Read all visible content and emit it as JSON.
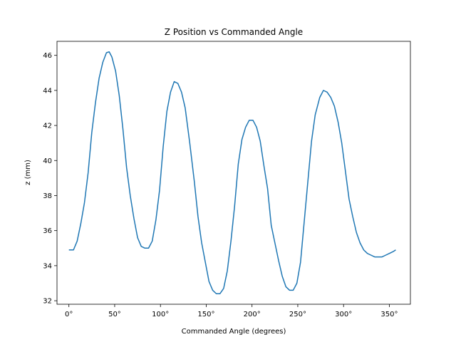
{
  "chart_data": {
    "type": "line",
    "title": "Z Position vs Commanded Angle",
    "xlabel": "Commanded Angle (degrees)",
    "ylabel": "z (mm)",
    "xlim": [
      -13,
      373
    ],
    "ylim": [
      31.8,
      46.8
    ],
    "x_ticks": [
      0,
      50,
      100,
      150,
      200,
      250,
      300,
      350
    ],
    "x_tick_labels": [
      "0°",
      "50°",
      "100°",
      "150°",
      "200°",
      "250°",
      "300°",
      "350°"
    ],
    "y_ticks": [
      32,
      34,
      36,
      38,
      40,
      42,
      44,
      46
    ],
    "y_tick_labels": [
      "32",
      "34",
      "36",
      "38",
      "40",
      "42",
      "44",
      "46"
    ],
    "grid": false,
    "legend": false,
    "series": [
      {
        "color": "#1f77b4",
        "x": [
          0,
          5,
          9,
          13,
          17,
          21,
          25,
          29,
          33,
          37,
          41,
          44,
          47,
          51,
          55,
          59,
          63,
          67,
          71,
          75,
          79,
          83,
          87,
          91,
          95,
          99,
          103,
          107,
          111,
          115,
          119,
          123,
          127,
          132,
          137,
          141,
          145,
          149,
          153,
          157,
          161,
          165,
          169,
          173,
          177,
          181,
          185,
          189,
          193,
          197,
          201,
          205,
          209,
          213,
          217,
          221,
          225,
          229,
          233,
          237,
          241,
          245,
          249,
          253,
          257,
          261,
          265,
          269,
          274,
          278,
          282,
          286,
          290,
          294,
          298,
          302,
          306,
          310,
          314,
          318,
          322,
          326,
          330,
          334,
          338,
          342,
          346,
          350,
          354,
          357
        ],
        "y": [
          34.9,
          34.9,
          35.4,
          36.4,
          37.6,
          39.3,
          41.6,
          43.3,
          44.7,
          45.6,
          46.15,
          46.2,
          45.9,
          45.1,
          43.7,
          41.8,
          39.6,
          38.0,
          36.7,
          35.6,
          35.1,
          35.0,
          35.0,
          35.4,
          36.6,
          38.3,
          40.8,
          42.8,
          43.9,
          44.5,
          44.4,
          43.9,
          43.0,
          41.0,
          38.8,
          36.8,
          35.3,
          34.2,
          33.1,
          32.6,
          32.4,
          32.4,
          32.7,
          33.7,
          35.4,
          37.4,
          39.8,
          41.2,
          41.9,
          42.3,
          42.3,
          41.9,
          41.1,
          39.7,
          38.4,
          36.3,
          35.3,
          34.3,
          33.4,
          32.8,
          32.6,
          32.6,
          33.0,
          34.2,
          36.5,
          38.8,
          41.1,
          42.6,
          43.6,
          44.0,
          43.9,
          43.6,
          43.1,
          42.2,
          41.0,
          39.4,
          37.8,
          36.8,
          35.9,
          35.3,
          34.9,
          34.7,
          34.6,
          34.5,
          34.5,
          34.5,
          34.6,
          34.7,
          34.8,
          34.9
        ]
      }
    ]
  }
}
